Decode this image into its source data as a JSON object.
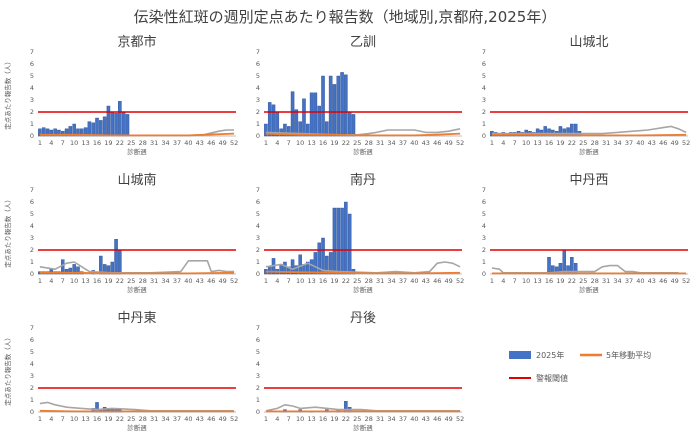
{
  "title": "伝染性紅斑の週別定点あたり報告数（地域別,京都府,2025年）",
  "legend": {
    "bar": "2025年",
    "avg": "5年移動平均",
    "alert": "警報閾値"
  },
  "colors": {
    "bar": "#4472C4",
    "bar_edge": "#2F4F8F",
    "avg_2025": "#ED7D31",
    "grey_prior": "#A6A6A6",
    "alert": "#E00000",
    "axis": "#BFBFBF",
    "text": "#404040"
  },
  "chart_data": [
    {
      "type": "bar",
      "panel": "京都市",
      "ylabel": "定点あたり報告数（人）",
      "xlabel": "診断週",
      "ylim": [
        0,
        7
      ],
      "yticks": [
        0,
        1,
        2,
        3,
        4,
        5,
        6,
        7
      ],
      "x_ticks": [
        1,
        4,
        7,
        10,
        13,
        16,
        19,
        22,
        25,
        28,
        31,
        34,
        37,
        40,
        43,
        46,
        49,
        52
      ],
      "alert_threshold": 2,
      "series": [
        {
          "name": "2025年",
          "x": [
            1,
            2,
            3,
            4,
            5,
            6,
            7,
            8,
            9,
            10,
            11,
            12,
            13,
            14,
            15,
            16,
            17,
            18,
            19,
            20,
            21,
            22,
            23,
            24
          ],
          "values": [
            0.6,
            0.7,
            0.6,
            0.5,
            0.6,
            0.5,
            0.4,
            0.6,
            0.8,
            1.0,
            0.6,
            0.6,
            0.7,
            1.2,
            1.1,
            1.5,
            1.3,
            1.6,
            2.5,
            2.0,
            1.9,
            2.9,
            2.0,
            1.8
          ]
        },
        {
          "name": "5年移動平均",
          "x": [
            1,
            10,
            20,
            30,
            40,
            44,
            52
          ],
          "values": [
            0.1,
            0.1,
            0.05,
            0.05,
            0.05,
            0.1,
            0.2
          ]
        },
        {
          "name": "",
          "x": [
            1,
            10,
            20,
            30,
            40,
            44,
            48,
            50,
            52
          ],
          "values": [
            0.1,
            0.1,
            0.05,
            0.05,
            0.05,
            0.1,
            0.4,
            0.5,
            0.5
          ]
        }
      ]
    },
    {
      "type": "bar",
      "panel": "乙訓",
      "ylabel": "",
      "xlabel": "診断週",
      "ylim": [
        0,
        7
      ],
      "yticks": [
        0,
        1,
        2,
        3,
        4,
        5,
        6,
        7
      ],
      "x_ticks": [
        1,
        4,
        7,
        10,
        13,
        16,
        19,
        22,
        25,
        28,
        31,
        34,
        37,
        40,
        43,
        46,
        49,
        52
      ],
      "alert_threshold": 2,
      "series": [
        {
          "name": "2025年",
          "x": [
            1,
            2,
            3,
            4,
            5,
            6,
            7,
            8,
            9,
            10,
            11,
            12,
            13,
            14,
            15,
            16,
            17,
            18,
            19,
            20,
            21,
            22,
            23,
            24
          ],
          "values": [
            1.0,
            2.8,
            2.6,
            2.0,
            0.6,
            1.0,
            0.8,
            3.7,
            2.2,
            1.2,
            3.1,
            1.0,
            3.6,
            3.6,
            2.5,
            5.0,
            1.2,
            5.0,
            4.3,
            5.0,
            5.3,
            5.1,
            2.0,
            1.8
          ]
        },
        {
          "name": "5年移動平均",
          "x": [
            1,
            5,
            10,
            15,
            20,
            25,
            30,
            35,
            40,
            45,
            52
          ],
          "values": [
            0.2,
            0.15,
            0.1,
            0.1,
            0.1,
            0.05,
            0.05,
            0.05,
            0.05,
            0.1,
            0.2
          ]
        },
        {
          "name": "",
          "x": [
            1,
            10,
            20,
            25,
            28,
            30,
            33,
            36,
            40,
            43,
            46,
            49,
            52
          ],
          "values": [
            0.3,
            0.2,
            0.1,
            0.1,
            0.2,
            0.3,
            0.5,
            0.5,
            0.5,
            0.3,
            0.3,
            0.4,
            0.6
          ]
        }
      ]
    },
    {
      "type": "bar",
      "panel": "山城北",
      "ylabel": "",
      "xlabel": "診断週",
      "ylim": [
        0,
        7
      ],
      "yticks": [
        0,
        1,
        2,
        3,
        4,
        5,
        6,
        7
      ],
      "x_ticks": [
        1,
        4,
        7,
        10,
        13,
        16,
        19,
        22,
        25,
        28,
        31,
        34,
        37,
        40,
        43,
        46,
        49,
        52
      ],
      "alert_threshold": 2,
      "series": [
        {
          "name": "2025年",
          "x": [
            1,
            2,
            3,
            4,
            5,
            6,
            7,
            8,
            9,
            10,
            11,
            12,
            13,
            14,
            15,
            16,
            17,
            18,
            19,
            20,
            21,
            22,
            23,
            24
          ],
          "values": [
            0.4,
            0.3,
            0.2,
            0.3,
            0.2,
            0.3,
            0.3,
            0.4,
            0.3,
            0.5,
            0.4,
            0.3,
            0.6,
            0.5,
            0.8,
            0.6,
            0.5,
            0.4,
            0.8,
            0.6,
            0.7,
            1.0,
            1.0,
            0.4
          ]
        },
        {
          "name": "5年移動平均",
          "x": [
            1,
            10,
            20,
            30,
            40,
            52
          ],
          "values": [
            0.1,
            0.1,
            0.05,
            0.05,
            0.05,
            0.1
          ]
        },
        {
          "name": "",
          "x": [
            1,
            10,
            20,
            26,
            30,
            34,
            38,
            42,
            46,
            48,
            50,
            52
          ],
          "values": [
            0.2,
            0.2,
            0.2,
            0.2,
            0.2,
            0.3,
            0.4,
            0.5,
            0.7,
            0.8,
            0.6,
            0.3
          ]
        }
      ]
    },
    {
      "type": "bar",
      "panel": "山城南",
      "ylabel": "定点あたり報告数（人）",
      "xlabel": "診断週",
      "ylim": [
        0,
        7
      ],
      "yticks": [
        0,
        1,
        2,
        3,
        4,
        5,
        6,
        7
      ],
      "x_ticks": [
        1,
        4,
        7,
        10,
        13,
        16,
        19,
        22,
        25,
        28,
        31,
        34,
        37,
        40,
        43,
        46,
        49,
        52
      ],
      "alert_threshold": 2,
      "series": [
        {
          "name": "2025年",
          "x": [
            1,
            2,
            3,
            4,
            5,
            6,
            7,
            8,
            9,
            10,
            11,
            12,
            13,
            14,
            15,
            16,
            17,
            18,
            19,
            20,
            21,
            22,
            23,
            24
          ],
          "values": [
            0.2,
            0.2,
            0.2,
            0.4,
            0.2,
            0.2,
            1.2,
            0.4,
            0.5,
            0.8,
            0.6,
            0.2,
            0,
            0,
            0.3,
            0,
            1.5,
            0.8,
            0.7,
            1.0,
            2.9,
            2.0,
            0,
            0
          ]
        },
        {
          "name": "5年移動平均",
          "x": [
            1,
            10,
            20,
            30,
            40,
            52
          ],
          "values": [
            0.1,
            0.1,
            0.05,
            0.05,
            0.05,
            0.1
          ]
        },
        {
          "name": "",
          "x": [
            1,
            5,
            8,
            10,
            12,
            14,
            20,
            30,
            38,
            40,
            41,
            45,
            46,
            48,
            50,
            52
          ],
          "values": [
            0.6,
            0.4,
            0.9,
            1.0,
            0.6,
            0.2,
            0.1,
            0.1,
            0.2,
            1.1,
            1.1,
            1.1,
            0.2,
            0.3,
            0.2,
            0.2
          ]
        }
      ]
    },
    {
      "type": "bar",
      "panel": "南丹",
      "ylabel": "",
      "xlabel": "診断週",
      "ylim": [
        0,
        7
      ],
      "yticks": [
        0,
        1,
        2,
        3,
        4,
        5,
        6,
        7
      ],
      "x_ticks": [
        1,
        4,
        7,
        10,
        13,
        16,
        19,
        22,
        25,
        28,
        31,
        34,
        37,
        40,
        43,
        46,
        49,
        52
      ],
      "alert_threshold": 2,
      "series": [
        {
          "name": "2025年",
          "x": [
            1,
            2,
            3,
            4,
            5,
            6,
            7,
            8,
            9,
            10,
            11,
            12,
            13,
            14,
            15,
            16,
            17,
            18,
            19,
            20,
            21,
            22,
            23,
            24
          ],
          "values": [
            0.4,
            0.6,
            1.3,
            0.4,
            0.8,
            1.0,
            0.6,
            1.2,
            0.7,
            1.6,
            0.8,
            1.0,
            1.2,
            1.8,
            2.6,
            3.0,
            1.5,
            1.8,
            5.5,
            5.5,
            5.5,
            6.0,
            5.0,
            0.4
          ]
        },
        {
          "name": "5年移動平均",
          "x": [
            1,
            10,
            20,
            30,
            40,
            52
          ],
          "values": [
            0.2,
            0.15,
            0.1,
            0.05,
            0.05,
            0.1
          ]
        },
        {
          "name": "",
          "x": [
            1,
            5,
            8,
            12,
            16,
            20,
            30,
            35,
            40,
            44,
            46,
            48,
            50,
            52
          ],
          "values": [
            0.6,
            0.8,
            0.4,
            0.9,
            0.3,
            0.2,
            0.1,
            0.2,
            0.1,
            0.2,
            0.9,
            1.0,
            0.9,
            0.6
          ]
        }
      ]
    },
    {
      "type": "bar",
      "panel": "中丹西",
      "ylabel": "",
      "xlabel": "診断週",
      "ylim": [
        0,
        7
      ],
      "yticks": [
        0,
        1,
        2,
        3,
        4,
        5,
        6,
        7
      ],
      "x_ticks": [
        1,
        4,
        7,
        10,
        13,
        16,
        19,
        22,
        25,
        28,
        31,
        34,
        37,
        40,
        43,
        46,
        49,
        52
      ],
      "alert_threshold": 2,
      "series": [
        {
          "name": "2025年",
          "x": [
            16,
            17,
            18,
            19,
            20,
            21,
            22,
            23
          ],
          "values": [
            1.4,
            0.7,
            0.6,
            0.9,
            2.0,
            0.7,
            1.4,
            0.9
          ]
        },
        {
          "name": "5年移動平均",
          "x": [
            1,
            10,
            20,
            30,
            40,
            52
          ],
          "values": [
            0.05,
            0.05,
            0.05,
            0.05,
            0.05,
            0.05
          ]
        },
        {
          "name": "",
          "x": [
            1,
            3,
            4,
            8,
            16,
            20,
            24,
            28,
            30,
            32,
            34,
            36,
            38,
            40,
            44,
            48,
            50
          ],
          "values": [
            0.5,
            0.4,
            0.1,
            0.1,
            0.1,
            0.2,
            0.2,
            0.2,
            0.6,
            0.7,
            0.7,
            0.2,
            0.2,
            0.1,
            0.1,
            0.1,
            0.1
          ]
        }
      ]
    },
    {
      "type": "bar",
      "panel": "中丹東",
      "ylabel": "定点あたり報告数（人）",
      "xlabel": "診断週",
      "ylim": [
        0,
        7
      ],
      "yticks": [
        0,
        1,
        2,
        3,
        4,
        5,
        6,
        7
      ],
      "x_ticks": [
        1,
        4,
        7,
        10,
        13,
        16,
        19,
        22,
        25,
        28,
        31,
        34,
        37,
        40,
        43,
        46,
        49,
        52
      ],
      "alert_threshold": 2,
      "series": [
        {
          "name": "2025年",
          "x": [
            15,
            16,
            17,
            18,
            19,
            20,
            21,
            22
          ],
          "values": [
            0.3,
            0.8,
            0.2,
            0.4,
            0.2,
            0.3,
            0.2,
            0.3
          ]
        },
        {
          "name": "5年移動平均",
          "x": [
            1,
            10,
            20,
            30,
            40,
            52
          ],
          "values": [
            0.1,
            0.05,
            0.05,
            0.05,
            0.05,
            0.05
          ]
        },
        {
          "name": "",
          "x": [
            1,
            3,
            5,
            8,
            12,
            16,
            20,
            26,
            30,
            36,
            40,
            46,
            52
          ],
          "values": [
            0.7,
            0.8,
            0.6,
            0.4,
            0.3,
            0.2,
            0.3,
            0.2,
            0.1,
            0.1,
            0.1,
            0.1,
            0.1
          ]
        }
      ]
    },
    {
      "type": "bar",
      "panel": "丹後",
      "ylabel": "",
      "xlabel": "診断週",
      "ylim": [
        0,
        7
      ],
      "yticks": [
        0,
        1,
        2,
        3,
        4,
        5,
        6,
        7
      ],
      "x_ticks": [
        1,
        4,
        7,
        10,
        13,
        16,
        19,
        22,
        25,
        28,
        31,
        34,
        37,
        40,
        43,
        46,
        49,
        52
      ],
      "alert_threshold": 2,
      "series": [
        {
          "name": "2025年",
          "x": [
            6,
            10,
            13,
            17,
            20,
            22,
            23
          ],
          "values": [
            0.2,
            0.2,
            0.1,
            0.2,
            0.2,
            0.9,
            0.4
          ]
        },
        {
          "name": "5年移動平均",
          "x": [
            1,
            10,
            20,
            30,
            40,
            52
          ],
          "values": [
            0.05,
            0.05,
            0.05,
            0.05,
            0.05,
            0.05
          ]
        },
        {
          "name": "",
          "x": [
            1,
            4,
            6,
            8,
            10,
            14,
            20,
            26,
            30,
            36,
            40,
            46,
            52
          ],
          "values": [
            0.1,
            0.3,
            0.6,
            0.5,
            0.3,
            0.4,
            0.2,
            0.2,
            0.1,
            0.1,
            0.1,
            0.1,
            0.1
          ]
        }
      ]
    }
  ]
}
